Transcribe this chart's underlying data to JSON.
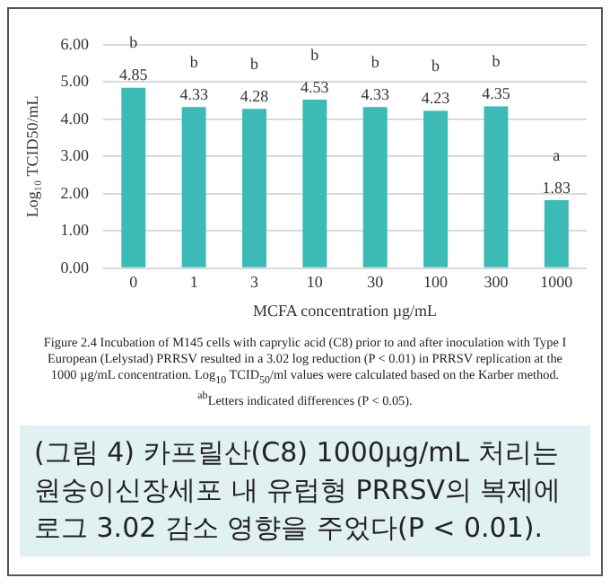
{
  "chart_data": {
    "type": "bar",
    "xlabel": "MCFA concentration µg/mL",
    "ylabel": "Log₁₀ TCID50/mL",
    "categories": [
      "0",
      "1",
      "3",
      "10",
      "30",
      "100",
      "300",
      "1000"
    ],
    "values": [
      4.85,
      4.33,
      4.28,
      4.53,
      4.33,
      4.23,
      4.35,
      1.83
    ],
    "color": "#3bbab6",
    "ylim": [
      0,
      6
    ],
    "yticks": [
      {
        "value": 0,
        "label": "0.00"
      },
      {
        "value": 1,
        "label": "1.00"
      },
      {
        "value": 2,
        "label": "2.00"
      },
      {
        "value": 3,
        "label": "3.00"
      },
      {
        "value": 4,
        "label": "4.00"
      },
      {
        "value": 5,
        "label": "5.00"
      },
      {
        "value": 6,
        "label": "6.00"
      }
    ],
    "grid": "y",
    "data_labels": true,
    "annotations": [
      "b",
      "b",
      "b",
      "b",
      "b",
      "b",
      "b",
      "a",
      "Figure 2.4 Incubation of M145 cells with caprylic acid (C8) prior to and after inoculation with Type I European (Lelystad) PRRSV resulted in a 3.02 log reduction (P < 0.01) in PRRSV replication at the 1000 µg/mL concentration. Log$_{10}$ TCID$_{50}$/ml values were calculated based on the Karber method. $^{ab}$Letters indicated differences (P < 0.05).",
      "(그림 4) 카프릴산(C8) 1000µg/mL 처리는 원숭이신장세포 내 유럽형 PRRSV의 복제에 로그 3.02 감소 영향을 주었다(P < 0.01)."
    ]
  }
}
